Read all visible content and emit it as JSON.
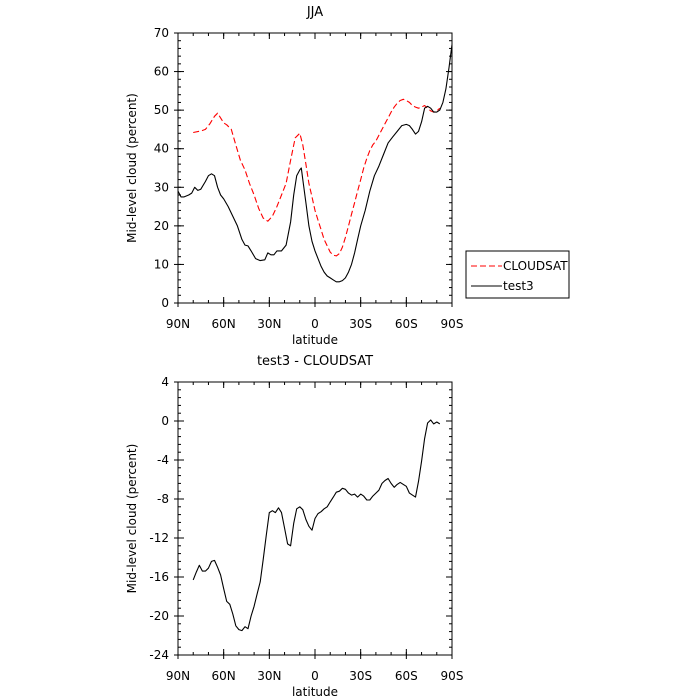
{
  "chart_data": [
    {
      "type": "line",
      "title": "JJA",
      "xlabel": "latitude",
      "ylabel": "Mid-level cloud (percent)",
      "xlim": [
        90,
        -90
      ],
      "ylim": [
        0,
        70
      ],
      "x_ticks": [
        90,
        60,
        30,
        0,
        -30,
        -60,
        -90
      ],
      "x_tick_labels": [
        "90N",
        "60N",
        "30N",
        "0",
        "30S",
        "60S",
        "90S"
      ],
      "y_ticks": [
        0,
        10,
        20,
        30,
        40,
        50,
        60,
        70
      ],
      "y_tick_labels": [
        "0",
        "10",
        "20",
        "30",
        "40",
        "50",
        "60",
        "70"
      ],
      "legend": "outside-right",
      "series": [
        {
          "name": "CLOUDSAT",
          "color": "#ff0000",
          "dash": "dashed",
          "x": [
            80,
            75,
            72,
            69,
            66,
            64,
            62,
            60,
            58,
            55,
            52,
            49,
            46,
            43,
            40,
            37,
            34,
            31,
            28,
            25,
            22,
            19,
            16,
            13,
            10,
            8,
            6,
            4,
            2,
            0,
            -2,
            -4,
            -6,
            -8,
            -10,
            -12,
            -14,
            -16,
            -18,
            -20,
            -22,
            -24,
            -26,
            -28,
            -30,
            -32,
            -34,
            -36,
            -38,
            -40,
            -42,
            -44,
            -46,
            -48,
            -50,
            -52,
            -54,
            -56,
            -58,
            -60,
            -62,
            -64,
            -66,
            -68,
            -70,
            -72,
            -74,
            -76,
            -78,
            -80,
            -82
          ],
          "values": [
            44.2,
            44.6,
            45,
            46.5,
            48.4,
            49.2,
            48,
            46.7,
            46.2,
            45,
            41,
            37,
            34.5,
            31,
            28,
            24.5,
            22,
            21.2,
            22.5,
            25,
            28,
            31,
            37,
            42.8,
            44,
            41,
            36,
            31,
            27.5,
            24,
            21.5,
            19,
            16.5,
            14.8,
            13.2,
            12.4,
            12.2,
            12.8,
            14.5,
            17,
            20,
            23,
            26,
            29,
            32,
            35,
            37.5,
            39.5,
            41,
            42,
            43.5,
            45,
            46.5,
            48,
            49.5,
            50.8,
            51.8,
            52.5,
            52.8,
            52.5,
            52,
            51.2,
            50.8,
            50.5,
            50.8,
            51.2,
            50.5,
            49.8,
            49.5,
            49.8,
            50.5
          ]
        },
        {
          "name": "test3",
          "color": "#000000",
          "dash": "solid",
          "x": [
            90,
            88,
            86,
            83,
            81,
            79,
            77,
            75,
            72,
            70,
            68,
            66,
            64,
            62,
            60,
            57,
            54,
            51,
            48,
            46,
            44,
            42,
            39,
            36,
            33,
            31,
            29,
            27,
            25,
            22,
            19,
            16,
            14,
            12,
            10,
            9,
            8,
            6,
            4,
            2,
            0,
            -2,
            -4,
            -6,
            -8,
            -10,
            -12,
            -14,
            -16,
            -18,
            -20,
            -22,
            -24,
            -26,
            -28,
            -30,
            -33,
            -36,
            -39,
            -42,
            -45,
            -48,
            -51,
            -54,
            -57,
            -60,
            -62,
            -64,
            -66,
            -68,
            -70,
            -72,
            -74,
            -76,
            -78,
            -80,
            -82,
            -84,
            -86,
            -88,
            -90
          ],
          "values": [
            29,
            27.5,
            27.5,
            28,
            28.5,
            30,
            29.2,
            29.5,
            31.5,
            33,
            33.5,
            33,
            30,
            28,
            27,
            25,
            22.5,
            20,
            16.5,
            15,
            14.8,
            13.5,
            11.5,
            11,
            11.2,
            13,
            12.5,
            12.5,
            13.5,
            13.5,
            15,
            21,
            28,
            33,
            34.5,
            35,
            32,
            26,
            20,
            16,
            13.5,
            11.5,
            9.5,
            8,
            7,
            6.5,
            6,
            5.5,
            5.5,
            5.8,
            6.5,
            8,
            10,
            13,
            16.5,
            20,
            24,
            29,
            33,
            35.5,
            38.5,
            41.5,
            43,
            44.5,
            46,
            46.3,
            46,
            45,
            43.8,
            44.5,
            47,
            50.5,
            51,
            50.5,
            49.5,
            49.5,
            50,
            52,
            55.5,
            61,
            67
          ]
        }
      ]
    },
    {
      "type": "line",
      "title": "test3 - CLOUDSAT",
      "xlabel": "latitude",
      "ylabel": "Mid-level cloud (percent)",
      "xlim": [
        90,
        -90
      ],
      "ylim": [
        -24,
        4
      ],
      "x_ticks": [
        90,
        60,
        30,
        0,
        -30,
        -60,
        -90
      ],
      "x_tick_labels": [
        "90N",
        "60N",
        "30N",
        "0",
        "30S",
        "60S",
        "90S"
      ],
      "y_ticks": [
        4,
        0,
        -4,
        -8,
        -12,
        -16,
        -20,
        -24
      ],
      "y_tick_labels": [
        "4",
        "0",
        "-4",
        "-8",
        "-12",
        "-16",
        "-20",
        "-24"
      ],
      "series": [
        {
          "color": "#000000",
          "dash": "solid",
          "x": [
            80,
            78,
            76,
            74,
            72,
            70,
            68,
            66,
            64,
            62,
            60,
            58,
            56,
            54,
            52,
            50,
            48,
            46,
            44,
            42,
            40,
            38,
            36,
            34,
            32,
            30,
            28,
            26,
            24,
            22,
            20,
            18,
            16,
            14,
            12,
            10,
            8,
            6,
            4,
            2,
            0,
            -2,
            -4,
            -6,
            -8,
            -10,
            -12,
            -14,
            -16,
            -18,
            -20,
            -22,
            -24,
            -26,
            -28,
            -30,
            -32,
            -34,
            -36,
            -38,
            -40,
            -42,
            -44,
            -46,
            -48,
            -50,
            -52,
            -54,
            -56,
            -58,
            -60,
            -62,
            -64,
            -66,
            -68,
            -70,
            -72,
            -74,
            -76,
            -78,
            -80,
            -82
          ],
          "values": [
            -16.3,
            -15.5,
            -14.8,
            -15.4,
            -15.4,
            -15.1,
            -14.4,
            -14.3,
            -15,
            -15.8,
            -17.2,
            -18.5,
            -18.8,
            -19.8,
            -21,
            -21.4,
            -21.5,
            -21.1,
            -21.3,
            -20,
            -19,
            -17.7,
            -16.5,
            -14.2,
            -11.7,
            -9.4,
            -9.2,
            -9.4,
            -8.9,
            -9.4,
            -11,
            -12.6,
            -12.8,
            -10.5,
            -9,
            -8.8,
            -9.1,
            -10.1,
            -10.8,
            -11.2,
            -10,
            -9.5,
            -9.3,
            -9.0,
            -8.8,
            -8.3,
            -7.8,
            -7.3,
            -7.2,
            -6.9,
            -7,
            -7.4,
            -7.6,
            -7.5,
            -7.8,
            -7.5,
            -7.7,
            -8.1,
            -8.1,
            -7.7,
            -7.4,
            -7.1,
            -6.4,
            -6.1,
            -5.9,
            -6.4,
            -6.8,
            -6.5,
            -6.3,
            -6.5,
            -6.7,
            -7.4,
            -7.6,
            -7.8,
            -6.2,
            -4.1,
            -1.8,
            -0.2,
            0.1,
            -0.3,
            -0.1,
            -0.3
          ]
        }
      ]
    }
  ]
}
